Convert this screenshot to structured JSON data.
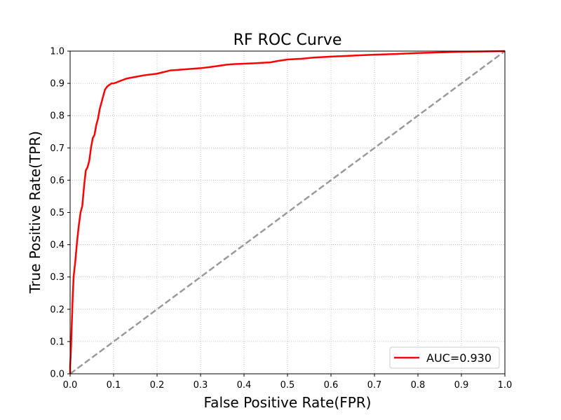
{
  "chart_data": {
    "type": "line",
    "title": "RF ROC Curve",
    "xlabel": "False Positive Rate(FPR)",
    "ylabel": "True Positive Rate(TPR)",
    "xlim": [
      0.0,
      1.0
    ],
    "ylim": [
      0.0,
      1.0
    ],
    "xticks": [
      "0.0",
      "0.1",
      "0.2",
      "0.3",
      "0.4",
      "0.5",
      "0.6",
      "0.7",
      "0.8",
      "0.9",
      "1.0"
    ],
    "yticks": [
      "0.0",
      "0.1",
      "0.2",
      "0.3",
      "0.4",
      "0.5",
      "0.6",
      "0.7",
      "0.8",
      "0.9",
      "1.0"
    ],
    "grid": true,
    "legend_position": "bottom-right",
    "series": [
      {
        "name": "AUC=0.930",
        "color": "#ff0000",
        "x": [
          0.0,
          0.0,
          0.002,
          0.004,
          0.006,
          0.008,
          0.012,
          0.016,
          0.02,
          0.024,
          0.028,
          0.032,
          0.036,
          0.04,
          0.044,
          0.048,
          0.052,
          0.056,
          0.06,
          0.064,
          0.068,
          0.072,
          0.076,
          0.08,
          0.085,
          0.09,
          0.095,
          0.1,
          0.105,
          0.11,
          0.12,
          0.13,
          0.15,
          0.17,
          0.2,
          0.23,
          0.26,
          0.3,
          0.33,
          0.36,
          0.38,
          0.42,
          0.46,
          0.48,
          0.5,
          0.53,
          0.56,
          0.6,
          0.65,
          0.7,
          0.75,
          0.8,
          0.85,
          0.9,
          0.95,
          1.0
        ],
        "y": [
          0.0,
          0.02,
          0.08,
          0.16,
          0.24,
          0.3,
          0.35,
          0.41,
          0.46,
          0.5,
          0.52,
          0.58,
          0.63,
          0.64,
          0.66,
          0.7,
          0.73,
          0.74,
          0.77,
          0.79,
          0.82,
          0.84,
          0.86,
          0.88,
          0.89,
          0.895,
          0.9,
          0.9,
          0.902,
          0.905,
          0.91,
          0.915,
          0.92,
          0.925,
          0.93,
          0.94,
          0.943,
          0.947,
          0.952,
          0.958,
          0.96,
          0.962,
          0.965,
          0.97,
          0.974,
          0.976,
          0.98,
          0.983,
          0.986,
          0.989,
          0.991,
          0.994,
          0.996,
          0.998,
          0.999,
          1.0
        ]
      },
      {
        "name": "",
        "color": "#9a9a9a",
        "dashed": true,
        "x": [
          0.0,
          1.0
        ],
        "y": [
          0.0,
          1.0
        ]
      }
    ]
  }
}
